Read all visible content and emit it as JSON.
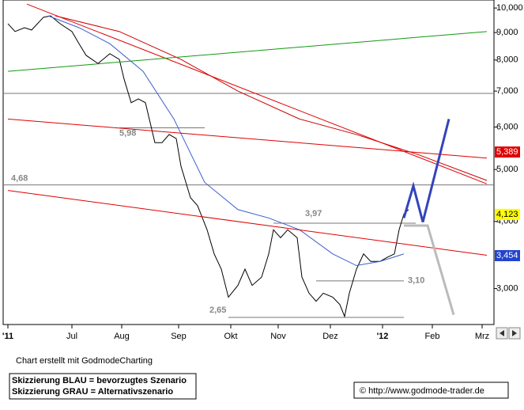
{
  "chart_data": {
    "type": "line",
    "log_y": true,
    "xlim": [
      -2,
      205
    ],
    "ylim": [
      2.57,
      10.35
    ],
    "xticks": [
      {
        "value": 0,
        "label": "'11"
      },
      {
        "value": 27,
        "label": "Jul"
      },
      {
        "value": 48,
        "label": "Aug"
      },
      {
        "value": 72,
        "label": "Sep"
      },
      {
        "value": 94,
        "label": "Okt"
      },
      {
        "value": 114,
        "label": "Nov"
      },
      {
        "value": 136,
        "label": "Dez"
      },
      {
        "value": 158,
        "label": "'12"
      },
      {
        "value": 179,
        "label": "Feb"
      },
      {
        "value": 200,
        "label": "Mrz"
      }
    ],
    "yticks": [
      {
        "value": 3,
        "label": "3,000"
      },
      {
        "value": 4,
        "label": "4,000"
      },
      {
        "value": 5,
        "label": "5,000"
      },
      {
        "value": 6,
        "label": "6,000"
      },
      {
        "value": 7,
        "label": "7,000"
      },
      {
        "value": 8,
        "label": "8,000"
      },
      {
        "value": 9,
        "label": "9,000"
      },
      {
        "value": 10,
        "label": "10,000"
      }
    ],
    "series": [
      {
        "color": "#000000",
        "x": [
          0,
          3,
          7,
          10,
          15,
          18,
          22,
          27,
          30,
          33,
          38,
          43,
          47,
          49,
          52,
          55,
          58,
          62,
          65,
          68,
          71,
          73,
          77,
          80,
          84,
          87,
          90,
          93,
          97,
          100,
          103,
          107,
          110,
          112,
          115,
          118,
          122,
          124,
          127,
          130,
          133,
          137,
          140,
          142,
          144,
          147,
          150,
          153,
          157,
          160,
          163,
          165,
          167,
          169
        ],
        "values": [
          9.35,
          9.04,
          9.19,
          9.1,
          9.61,
          9.67,
          9.35,
          9.04,
          8.58,
          8.16,
          7.88,
          8.22,
          8.02,
          7.37,
          6.66,
          6.77,
          6.66,
          5.61,
          5.61,
          5.81,
          5.71,
          5.07,
          4.43,
          4.28,
          3.86,
          3.48,
          3.26,
          2.89,
          3.04,
          3.26,
          3.04,
          3.15,
          3.48,
          3.86,
          3.73,
          3.86,
          3.73,
          3.15,
          2.94,
          2.84,
          2.94,
          2.89,
          2.8,
          2.66,
          2.94,
          3.26,
          3.48,
          3.37,
          3.37,
          3.43,
          3.48,
          3.86,
          4.13,
          4.21
        ]
      },
      {
        "color": "#3a5fcd",
        "x": [
          17,
          30,
          43,
          57,
          70,
          83,
          97,
          110,
          123,
          137,
          147,
          157,
          167
        ],
        "values": [
          9.67,
          9.19,
          8.58,
          7.62,
          6.21,
          4.73,
          4.21,
          4.06,
          3.86,
          3.48,
          3.31,
          3.37,
          3.48
        ]
      },
      {
        "color": "#cc0000",
        "x": [
          20,
          47,
          73,
          97,
          123,
          147,
          173,
          202
        ],
        "values": [
          9.67,
          9.04,
          8.02,
          7.0,
          6.21,
          5.81,
          5.33,
          4.77
        ]
      },
      {
        "color": "#e00000",
        "x": [
          8,
          202
        ],
        "values": [
          10.17,
          4.7
        ]
      },
      {
        "color": "#e00000",
        "x": [
          0,
          202
        ],
        "values": [
          4.57,
          3.46
        ]
      },
      {
        "color": "#e00000",
        "x": [
          0,
          202
        ],
        "values": [
          6.21,
          5.25
        ]
      },
      {
        "color": "#119911",
        "x": [
          0,
          202
        ],
        "values": [
          7.62,
          9.04
        ]
      },
      {
        "color": "#3344bb",
        "x": [
          167,
          171,
          175,
          186
        ],
        "values": [
          4.06,
          4.66,
          3.99,
          6.21
        ]
      },
      {
        "color": "#bbbbbb",
        "x": [
          167,
          177,
          188
        ],
        "values": [
          3.93,
          3.93,
          2.68
        ]
      }
    ],
    "levels": [
      {
        "value": 6.93,
        "x": [
          -2,
          205
        ]
      },
      {
        "value": 5.98,
        "label": "5,98",
        "x": [
          47,
          83
        ]
      },
      {
        "value": 4.68,
        "label": "4,68",
        "x": [
          -2,
          205
        ]
      },
      {
        "value": 3.97,
        "label": "3,97",
        "x": [
          112,
          172
        ]
      },
      {
        "value": 3.1,
        "label": "3,10",
        "x": [
          130,
          167
        ]
      },
      {
        "value": 2.65,
        "label": "2,65",
        "x": [
          93,
          167
        ]
      }
    ],
    "tags": [
      {
        "value": 5.389,
        "label": "5,389",
        "color": "#e00000",
        "text_color": "#ffffff"
      },
      {
        "value": 4.123,
        "label": "4,123",
        "color": "#ffff00",
        "text_color": "#000000"
      },
      {
        "value": 3.454,
        "label": "3,454",
        "color": "#2244cc",
        "text_color": "#ffffff"
      }
    ]
  },
  "footer": {
    "credit": "Chart erstellt mit GodmodeCharting",
    "legend": [
      "Skizzierung BLAU = bevorzugtes Szenario",
      "Skizzierung GRAU = Alternativszenario"
    ],
    "url": "© http://www.godmode-trader.de"
  }
}
